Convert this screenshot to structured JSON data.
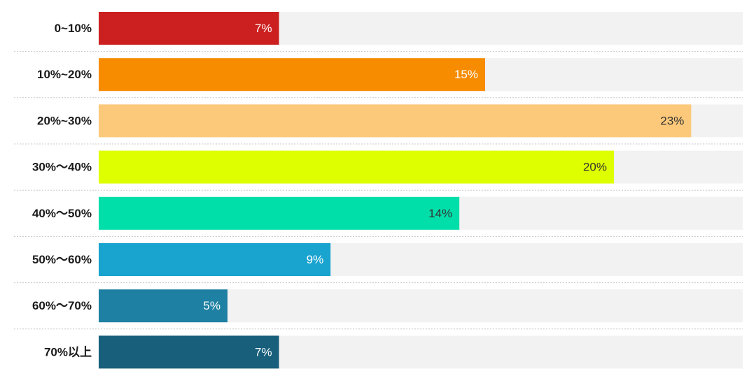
{
  "chart_data": {
    "type": "bar",
    "orientation": "horizontal",
    "categories": [
      "0~10%",
      "10%~20%",
      "20%~30%",
      "30%～40%",
      "40%～50%",
      "50%～60%",
      "60%～70%",
      "70%以上"
    ],
    "values": [
      7,
      15,
      23,
      20,
      14,
      9,
      5,
      7
    ],
    "value_labels": [
      "7%",
      "15%",
      "23%",
      "20%",
      "14%",
      "9%",
      "5%",
      "7%"
    ],
    "colors": [
      "#cc2020",
      "#f78c00",
      "#fcc97a",
      "#deff00",
      "#00deaa",
      "#19a3cf",
      "#1e80a2",
      "#175f7b"
    ],
    "label_colors": [
      "#ffffff",
      "#ffffff",
      "#333333",
      "#333333",
      "#333333",
      "#ffffff",
      "#ffffff",
      "#ffffff"
    ],
    "xlim": [
      0,
      25
    ],
    "title": "",
    "xlabel": "",
    "ylabel": "",
    "legend": "none",
    "grid": false
  }
}
